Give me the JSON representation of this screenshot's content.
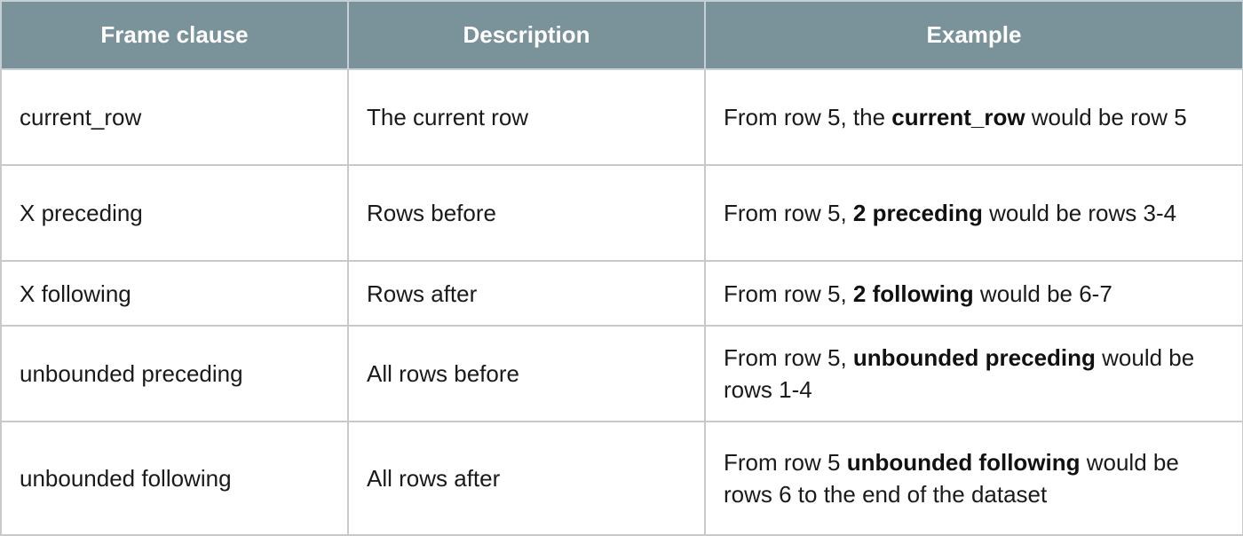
{
  "headers": [
    "Frame clause",
    "Description",
    "Example"
  ],
  "rows": [
    {
      "clause": "current_row",
      "description": "The current row",
      "example": {
        "before": "From row 5, the ",
        "bold": "current_row",
        "after": " would be row 5"
      }
    },
    {
      "clause": "X preceding",
      "description": "Rows before",
      "example": {
        "before": "From row 5, ",
        "bold": "2 preceding",
        "after": " would be rows 3-4"
      }
    },
    {
      "clause": "X following",
      "description": "Rows after",
      "example": {
        "before": "From row 5, ",
        "bold": "2 following",
        "after": " would be 6-7"
      }
    },
    {
      "clause": "unbounded preceding",
      "description": "All rows before",
      "example": {
        "before": "From row 5, ",
        "bold": "unbounded preceding",
        "after": " would be rows 1-4"
      }
    },
    {
      "clause": "unbounded following",
      "description": "All rows after",
      "example": {
        "before": "From row 5 ",
        "bold": "unbounded following",
        "after": " would be rows 6 to the end of the dataset"
      }
    }
  ],
  "colors": {
    "header_bg": "#7a929a",
    "header_text": "#ffffff",
    "border": "#c9c9c9"
  }
}
